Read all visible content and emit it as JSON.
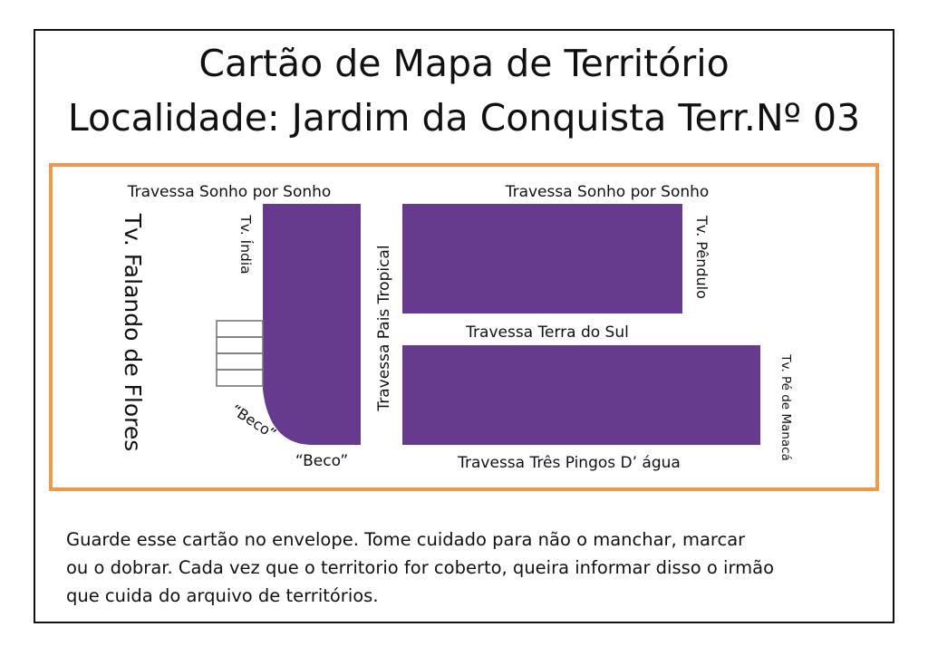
{
  "header": {
    "title_line1": "Cartão de Mapa de Território",
    "title_line2": "Localidade: Jardim da Conquista Terr.Nº 03"
  },
  "map": {
    "colors": {
      "block": "#663a8f",
      "frame": "#f0994a",
      "houses": "#777777"
    },
    "streets": {
      "sonho_left": "Travessa Sonho por Sonho",
      "sonho_right": "Travessa Sonho por Sonho",
      "falando_flores": "Tv. Falando de Flores",
      "india": "Tv. Índia",
      "pais_tropical": "Travessa Pais Tropical",
      "pendulo": "Tv. Pêndulo",
      "terra_sul": "Travessa Terra do Sul",
      "pe_manaca": "Tv. Pé de Manacá",
      "beco_diagonal": "“Beco”",
      "beco_bottom": "“Beco”",
      "tres_pingos": "Travessa Três Pingos D’ água"
    }
  },
  "footer": {
    "line1": "Guarde esse cartão no envelope. Tome cuidado para não o manchar, marcar",
    "line2": "ou o dobrar. Cada vez que o territorio for coberto, queira informar disso o irmão",
    "line3": "que cuida do arquivo de territórios."
  }
}
